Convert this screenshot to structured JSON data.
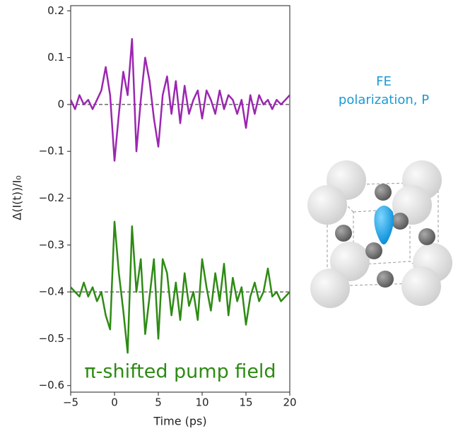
{
  "chart_data": {
    "type": "line",
    "ylabel": "Δ(I(t))/I₀",
    "xlabel": "Time (ps)",
    "annotation": "π-shifted pump field",
    "side_labels": [
      "FE",
      "polarization, P"
    ],
    "x": [
      -5,
      -4.5,
      -4,
      -3.5,
      -3,
      -2.5,
      -2,
      -1.5,
      -1,
      -0.5,
      0,
      0.5,
      1,
      1.5,
      2,
      2.5,
      3,
      3.5,
      4,
      4.5,
      5,
      5.5,
      6,
      6.5,
      7,
      7.5,
      8,
      8.5,
      9,
      9.5,
      10,
      10.5,
      11,
      11.5,
      12,
      12.5,
      13,
      13.5,
      14,
      14.5,
      15,
      15.5,
      16,
      16.5,
      17,
      17.5,
      18,
      18.5,
      19,
      19.5,
      20
    ],
    "series": [
      {
        "color": "#9b27b0",
        "values": [
          0.01,
          -0.01,
          0.02,
          0,
          0.01,
          -0.01,
          0.01,
          0.03,
          0.08,
          0.02,
          -0.12,
          -0.02,
          0.07,
          0.02,
          0.14,
          -0.1,
          0.01,
          0.1,
          0.05,
          -0.03,
          -0.09,
          0.02,
          0.06,
          -0.02,
          0.05,
          -0.04,
          0.04,
          -0.02,
          0.01,
          0.03,
          -0.03,
          0.03,
          0.01,
          -0.02,
          0.03,
          -0.01,
          0.02,
          0.01,
          -0.02,
          0.01,
          -0.05,
          0.02,
          -0.02,
          0.02,
          0,
          0.01,
          -0.01,
          0.01,
          0,
          0.01,
          0.02
        ]
      },
      {
        "color": "#2e8b14",
        "values": [
          -0.39,
          -0.4,
          -0.41,
          -0.38,
          -0.41,
          -0.39,
          -0.42,
          -0.4,
          -0.45,
          -0.48,
          -0.25,
          -0.36,
          -0.44,
          -0.53,
          -0.26,
          -0.4,
          -0.33,
          -0.49,
          -0.41,
          -0.33,
          -0.5,
          -0.33,
          -0.36,
          -0.45,
          -0.38,
          -0.46,
          -0.36,
          -0.43,
          -0.4,
          -0.46,
          -0.33,
          -0.39,
          -0.44,
          -0.36,
          -0.42,
          -0.34,
          -0.45,
          -0.37,
          -0.42,
          -0.39,
          -0.47,
          -0.41,
          -0.38,
          -0.42,
          -0.4,
          -0.35,
          -0.41,
          -0.4,
          -0.42,
          -0.41,
          -0.4
        ]
      }
    ],
    "hlines": [
      0,
      -0.4
    ],
    "xlim": [
      -5,
      20
    ],
    "ylim": [
      -0.614,
      0.211
    ],
    "xticks": [
      {
        "value": -5,
        "label": "−5"
      },
      0,
      5,
      10,
      15,
      20
    ],
    "yticks": [
      0.2,
      0.1,
      0,
      {
        "value": -0.1,
        "label": "−0.1"
      },
      {
        "value": -0.2,
        "label": "−0.2"
      },
      {
        "value": -0.3,
        "label": "−0.3"
      },
      {
        "value": -0.4,
        "label": "−0.4"
      },
      {
        "value": -0.5,
        "label": "−0.5"
      },
      {
        "value": -0.6,
        "label": "−0.6"
      }
    ]
  }
}
